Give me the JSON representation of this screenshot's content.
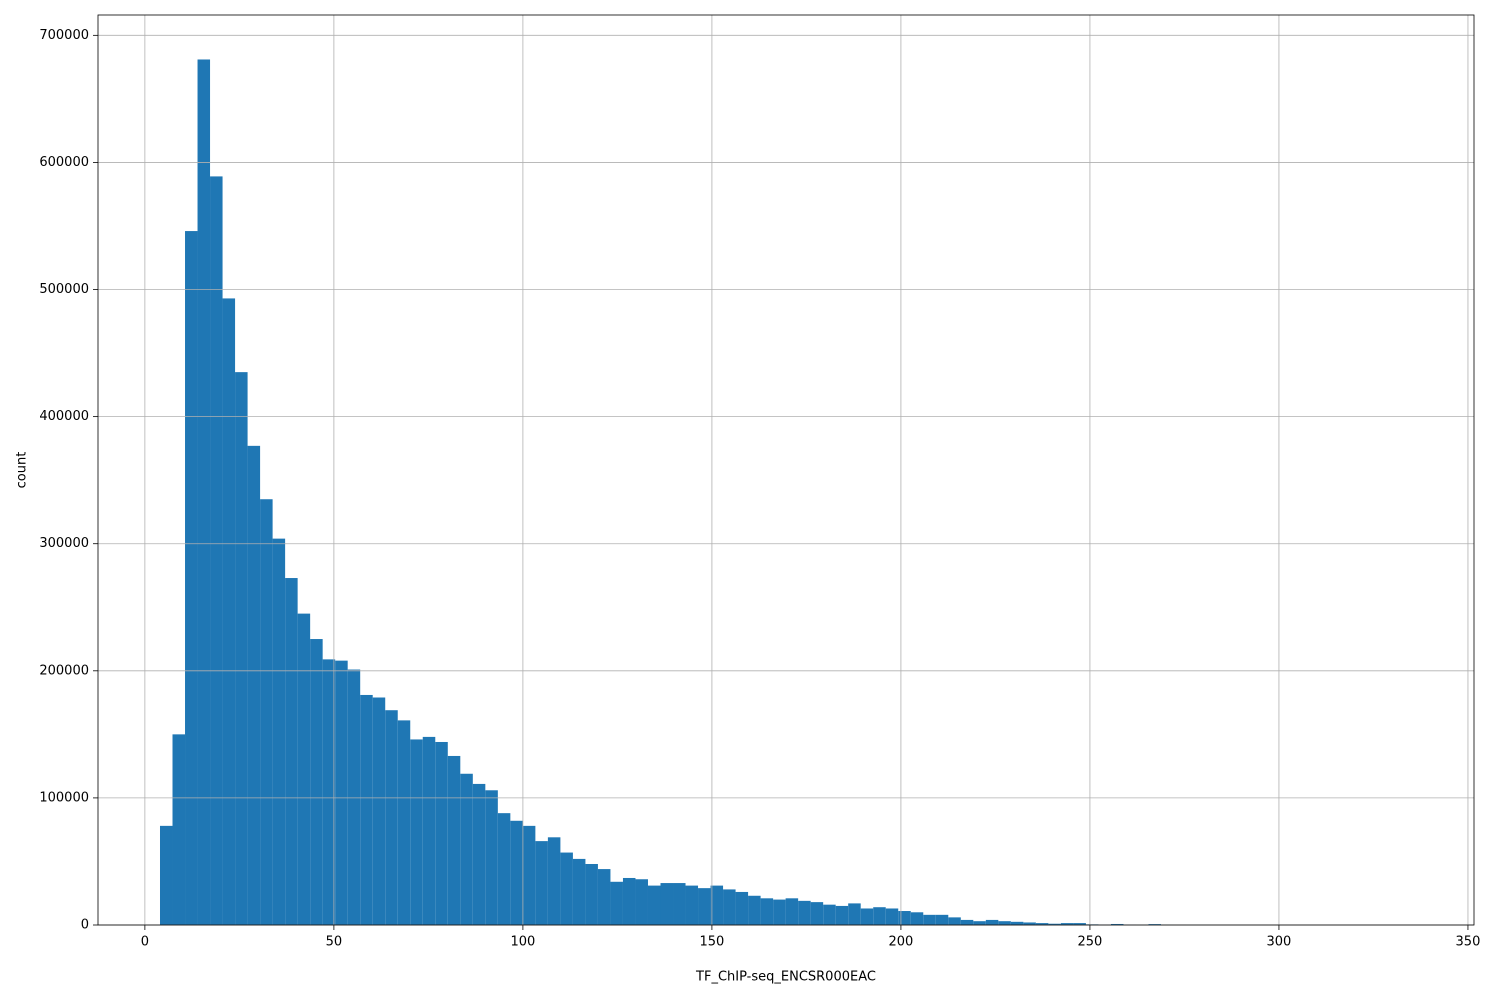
{
  "chart_data": {
    "type": "histogram",
    "x_label": "TF_ChIP-seq_ENCSR000EAC",
    "y_label": "count",
    "color": "#1f77b4",
    "grid": true,
    "bins": [
      4,
      7.31,
      10.62,
      13.93,
      17.24,
      20.55,
      23.86,
      27.17,
      30.48,
      33.79,
      37.1,
      40.41,
      43.72,
      47.03,
      50.34,
      53.65,
      56.96,
      60.27,
      63.58,
      66.89,
      70.2,
      73.51,
      76.82,
      80.13,
      83.44,
      86.75,
      90.06,
      93.37,
      96.68,
      99.99,
      103.3,
      106.61,
      109.92,
      113.23,
      116.54,
      119.85,
      123.16,
      126.47,
      129.78,
      133.09,
      136.4,
      139.71,
      143.02,
      146.33,
      149.64,
      152.95,
      156.26,
      159.57,
      162.88,
      166.19,
      169.5,
      172.81,
      176.12,
      179.43,
      182.74,
      186.05,
      189.36,
      192.67,
      195.98,
      199.29,
      202.6,
      205.91,
      209.22,
      212.53,
      215.84,
      219.15,
      222.46,
      225.77,
      229.08,
      232.39,
      235.7,
      239.01,
      242.32,
      245.63,
      248.94,
      252.25,
      255.56,
      258.87,
      262.18,
      265.49,
      268.8,
      272.11,
      275.42,
      278.73,
      282.04,
      285.35,
      288.66,
      291.97,
      295.28,
      298.59,
      301.9,
      305.21,
      308.52,
      311.83,
      315.14,
      318.45,
      321.76,
      325.07,
      328.38,
      331.69,
      335
    ],
    "values": [
      78000,
      150000,
      546000,
      681000,
      589000,
      493000,
      435000,
      377000,
      335000,
      304000,
      273000,
      245000,
      225000,
      209000,
      208000,
      201000,
      181000,
      179000,
      169000,
      161000,
      146000,
      148000,
      144000,
      133000,
      119000,
      111000,
      106000,
      88000,
      82000,
      78000,
      66000,
      69000,
      57000,
      52000,
      48000,
      44000,
      34000,
      37000,
      36000,
      31000,
      33000,
      33000,
      31000,
      29000,
      31000,
      28000,
      26000,
      23000,
      21000,
      20000,
      21000,
      19000,
      18000,
      16000,
      15000,
      17000,
      13000,
      14000,
      13000,
      11000,
      10000,
      8000,
      8000,
      6000,
      4000,
      3000,
      4000,
      3000,
      2500,
      2000,
      1500,
      1000,
      1500,
      1500,
      500,
      300,
      800,
      300,
      200,
      700,
      200,
      100,
      50,
      50,
      30,
      20,
      20,
      10,
      10,
      5,
      5,
      5,
      3,
      2,
      2,
      1,
      1,
      1,
      1,
      1
    ],
    "xlim": [
      -12.4,
      351.6
    ],
    "xticks": [
      0,
      50,
      100,
      150,
      200,
      250,
      300,
      350
    ],
    "ylim": [
      0,
      716000
    ],
    "yticks": [
      0,
      100000,
      200000,
      300000,
      400000,
      500000,
      600000,
      700000
    ]
  }
}
